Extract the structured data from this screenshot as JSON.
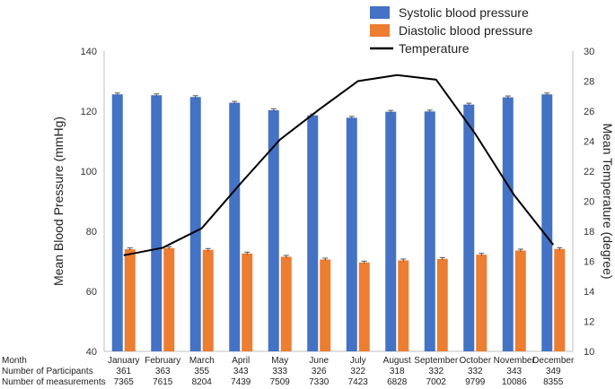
{
  "chart_data": {
    "type": "bar",
    "categories": [
      "January",
      "February",
      "March",
      "April",
      "May",
      "June",
      "July",
      "August",
      "September",
      "October",
      "November",
      "December"
    ],
    "series": [
      {
        "name": "Systolic blood pressure",
        "kind": "bar",
        "axis": "left",
        "color": "#4472C4",
        "values": [
          125.6,
          125.3,
          124.7,
          122.8,
          120.3,
          118.6,
          117.8,
          119.8,
          119.9,
          122.2,
          124.6,
          125.6
        ]
      },
      {
        "name": "Diastolic blood pressure",
        "kind": "bar",
        "axis": "left",
        "color": "#ED7D31",
        "values": [
          74.0,
          74.4,
          73.8,
          72.6,
          71.5,
          70.6,
          69.6,
          70.3,
          70.8,
          72.2,
          73.6,
          74.1
        ]
      },
      {
        "name": "Temperature",
        "kind": "line",
        "axis": "right",
        "color": "#000000",
        "values": [
          16.4,
          16.9,
          18.2,
          21.2,
          24.1,
          26.1,
          28.0,
          28.4,
          28.1,
          24.5,
          20.4,
          17.1
        ]
      }
    ],
    "ylabel": "Mean Blood Pressure (mmHg)",
    "ylim": [
      40,
      140
    ],
    "yticks": [
      "40",
      "60",
      "80",
      "100",
      "120",
      "140"
    ],
    "y2label": "Mean Temperature (degree)",
    "y2lim": [
      10,
      30
    ],
    "y2ticks": [
      "10",
      "12",
      "14",
      "16",
      "18",
      "20",
      "22",
      "24",
      "26",
      "28",
      "30"
    ],
    "legend_position": "top-right",
    "grid": false,
    "table": {
      "row_labels": [
        "Month",
        "Number of Participants",
        "Number of measurements"
      ],
      "participants": [
        "361",
        "363",
        "355",
        "343",
        "333",
        "326",
        "322",
        "318",
        "332",
        "332",
        "343",
        "349"
      ],
      "measurements": [
        "7365",
        "7615",
        "8204",
        "7439",
        "7509",
        "7330",
        "7423",
        "6828",
        "7002",
        "9799",
        "10086",
        "8355"
      ]
    }
  }
}
